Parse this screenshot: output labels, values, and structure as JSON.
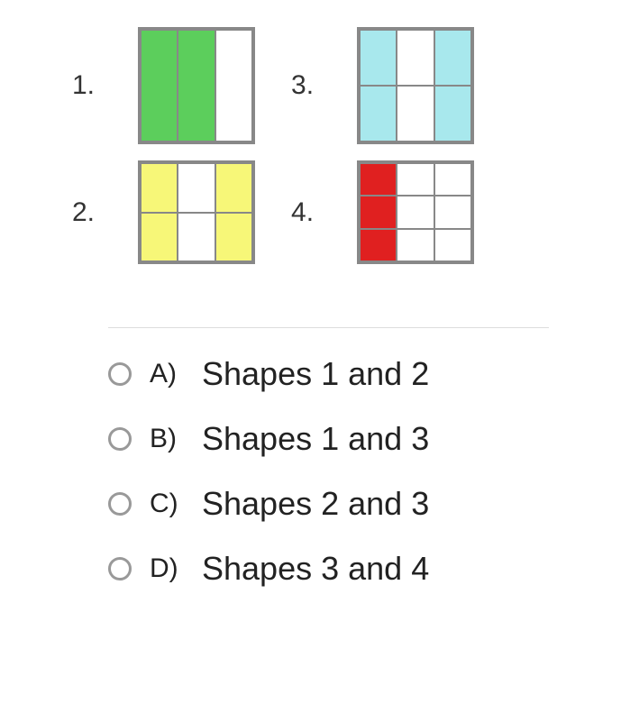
{
  "shapes": {
    "shape1": {
      "label": "1.",
      "cols": 3,
      "rows": 1,
      "filled_color": "#5cce5c",
      "empty_color": "#ffffff",
      "cells": [
        true,
        true,
        false
      ]
    },
    "shape3": {
      "label": "3.",
      "cols": 3,
      "rows": 2,
      "filled_color": "#a8e8ed",
      "empty_color": "#ffffff",
      "cells": [
        true,
        false,
        true,
        true,
        false,
        true
      ]
    },
    "shape2": {
      "label": "2.",
      "cols": 3,
      "rows": 2,
      "filled_color": "#f7f778",
      "empty_color": "#ffffff",
      "cells": [
        true,
        false,
        true,
        true,
        false,
        true
      ]
    },
    "shape4": {
      "label": "4.",
      "cols": 3,
      "rows": 3,
      "filled_color": "#e02020",
      "empty_color": "#ffffff",
      "cells": [
        true,
        false,
        false,
        true,
        false,
        false,
        true,
        false,
        false
      ]
    }
  },
  "options": {
    "a": {
      "letter": "A)",
      "text": "Shapes 1 and 2"
    },
    "b": {
      "letter": "B)",
      "text": "Shapes 1 and 3"
    },
    "c": {
      "letter": "C)",
      "text": "Shapes 2 and 3"
    },
    "d": {
      "letter": "D)",
      "text": "Shapes 3 and 4"
    }
  },
  "colors": {
    "border": "#888888",
    "text": "#222222",
    "radio_border": "#999999"
  }
}
